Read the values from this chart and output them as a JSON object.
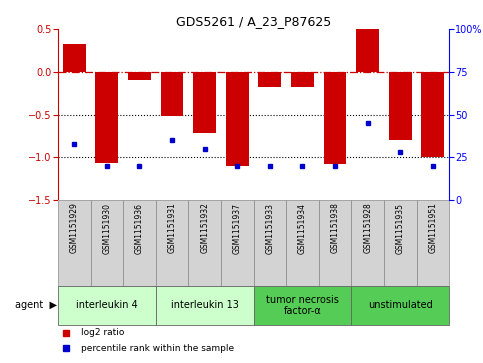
{
  "title": "GDS5261 / A_23_P87625",
  "samples": [
    "GSM1151929",
    "GSM1151930",
    "GSM1151936",
    "GSM1151931",
    "GSM1151932",
    "GSM1151937",
    "GSM1151933",
    "GSM1151934",
    "GSM1151938",
    "GSM1151928",
    "GSM1151935",
    "GSM1151951"
  ],
  "log2_ratio": [
    0.33,
    -1.07,
    -0.1,
    -0.52,
    -0.72,
    -1.1,
    -0.18,
    -0.18,
    -1.08,
    0.5,
    -0.8,
    -1.0
  ],
  "percentile": [
    33,
    20,
    20,
    35,
    30,
    20,
    20,
    20,
    20,
    45,
    28,
    20
  ],
  "agents": [
    {
      "label": "interleukin 4",
      "start": 0,
      "end": 3,
      "color": "#ccffcc"
    },
    {
      "label": "interleukin 13",
      "start": 3,
      "end": 6,
      "color": "#ccffcc"
    },
    {
      "label": "tumor necrosis\nfactor-α",
      "start": 6,
      "end": 9,
      "color": "#55cc55"
    },
    {
      "label": "unstimulated",
      "start": 9,
      "end": 12,
      "color": "#55cc55"
    }
  ],
  "bar_color": "#cc0000",
  "dot_color": "#0000cc",
  "ylim_left": [
    -1.5,
    0.5
  ],
  "ylim_right": [
    0,
    100
  ],
  "yticks_left": [
    -1.5,
    -1.0,
    -0.5,
    0.0,
    0.5
  ],
  "yticks_right": [
    0,
    25,
    50,
    75,
    100
  ],
  "legend_log2": "log2 ratio",
  "legend_pct": "percentile rank within the sample",
  "agent_label": "agent",
  "bar_width": 0.7,
  "label_fontsize": 5.5,
  "agent_fontsize": 7,
  "tick_fontsize": 7,
  "title_fontsize": 9
}
